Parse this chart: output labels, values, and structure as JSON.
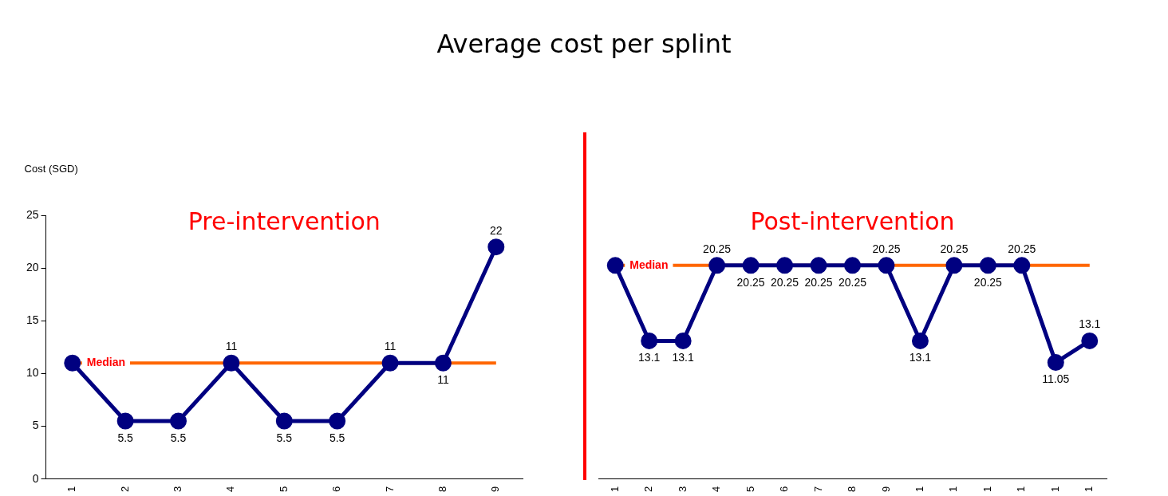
{
  "chart_data": [
    {
      "type": "line",
      "title": "Average cost per splint",
      "subtitle": "Pre-intervention",
      "ylabel": "Cost (SGD)",
      "categories": [
        "1",
        "2",
        "3",
        "4",
        "5",
        "6",
        "7",
        "8",
        "9"
      ],
      "series": [
        {
          "color": "#000080",
          "values": [
            11,
            5.5,
            5.5,
            11,
            5.5,
            5.5,
            11,
            11,
            22
          ],
          "value_labels": [
            null,
            "5.5",
            "5.5",
            "11",
            "5.5",
            "5.5",
            "11",
            "11",
            "22"
          ]
        }
      ],
      "ylim": [
        0,
        25
      ],
      "yticks": [
        0,
        5,
        10,
        15,
        20,
        25
      ],
      "grid": false,
      "legend": false,
      "marker": "circle",
      "line_style": "solid",
      "ref_lines": [
        {
          "axis": "y",
          "value": 11,
          "label": "Median",
          "color": "#ff6600"
        }
      ]
    },
    {
      "type": "line",
      "subtitle": "Post-intervention",
      "categories": [
        "1",
        "2",
        "3",
        "4",
        "5",
        "6",
        "7",
        "8",
        "9",
        "1",
        "1",
        "1",
        "1",
        "1",
        "1"
      ],
      "series": [
        {
          "color": "#000080",
          "values": [
            20.25,
            13.1,
            13.1,
            20.25,
            20.25,
            20.25,
            20.25,
            20.25,
            20.25,
            13.1,
            20.25,
            20.25,
            20.25,
            11.05,
            13.1
          ],
          "value_labels": [
            null,
            "13.1",
            "13.1",
            "20.25",
            "20.25",
            "20.25",
            "20.25",
            "20.25",
            "20.25",
            "13.1",
            "20.25",
            "20.25",
            "20.25",
            "11.05",
            "13.1"
          ]
        }
      ],
      "ylim": [
        0,
        25
      ],
      "tick_labels": "x",
      "grid": false,
      "legend": false,
      "marker": "circle",
      "line_style": "solid",
      "ref_lines": [
        {
          "axis": "y",
          "value": 20.25,
          "label": "Median",
          "color": "#ff6600"
        }
      ]
    }
  ]
}
